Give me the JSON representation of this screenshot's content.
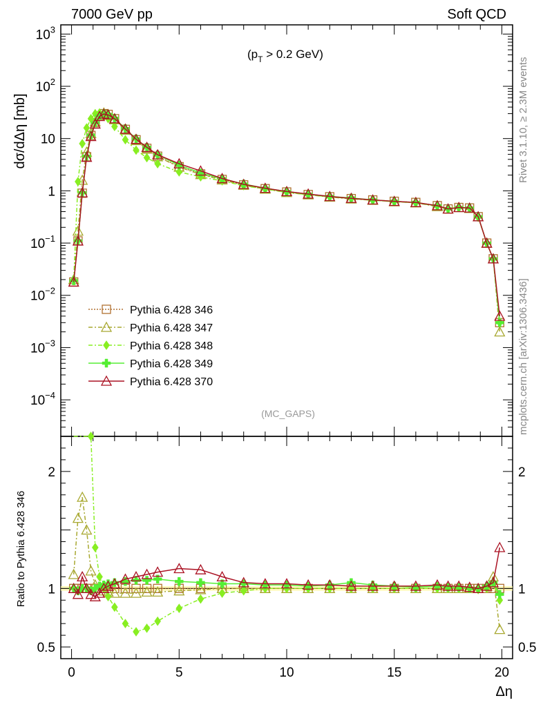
{
  "header": {
    "left": "7000 GeV pp",
    "right": "Soft QCD"
  },
  "side_labels": {
    "right_upper": "Rivet 3.1.10, ≥ 2.3M events",
    "right_lower": "mcplots.cern.ch [arXiv:1306.3436]"
  },
  "chart_data": {
    "type": "line",
    "annotation_cut": "(p_T > 0.2 GeV)",
    "watermark": "(MC_GAPS)",
    "xlabel": "Δη",
    "x_ticks": [
      "0",
      "5",
      "10",
      "15",
      "20"
    ],
    "xlim": [
      -0.5,
      20.5
    ],
    "main_panel": {
      "ylabel": "dσ/dΔη [mb]",
      "yscale": "log",
      "ylim": [
        2e-05,
        1500
      ],
      "y_ticks": [
        "10^-4",
        "10^-3",
        "10^-2",
        "10^-1",
        "1",
        "10",
        "10^2",
        "10^3"
      ]
    },
    "ratio_panel": {
      "ylabel": "Ratio to Pythia 6.428 346",
      "ylim": [
        0.4,
        2.3
      ],
      "y_ticks": [
        "0.5",
        "1",
        "2"
      ]
    },
    "x": [
      0.1,
      0.3,
      0.5,
      0.7,
      0.9,
      1.1,
      1.3,
      1.5,
      1.7,
      2.0,
      2.5,
      3.0,
      3.5,
      4.0,
      5.0,
      6.0,
      7.0,
      8.0,
      9.0,
      10.0,
      11.0,
      12.0,
      13.0,
      14.0,
      15.0,
      16.0,
      17.0,
      17.5,
      18.0,
      18.5,
      18.9,
      19.3,
      19.6,
      19.9
    ],
    "series": [
      {
        "name": "Pythia 6.428 346",
        "color": "#b07030",
        "marker": "square",
        "dash": "2,2",
        "values": [
          0.018,
          0.11,
          0.9,
          4.5,
          11.5,
          20,
          27,
          30,
          29,
          24,
          15,
          9.5,
          6.5,
          4.6,
          2.9,
          2.1,
          1.65,
          1.3,
          1.1,
          0.95,
          0.85,
          0.77,
          0.71,
          0.67,
          0.63,
          0.6,
          0.52,
          0.45,
          0.48,
          0.47,
          0.32,
          0.1,
          0.05,
          0.003
        ],
        "ratio": [
          1.0,
          1.0,
          1.0,
          1.0,
          1.0,
          1.0,
          1.0,
          1.0,
          1.0,
          1.0,
          1.0,
          1.0,
          1.0,
          1.0,
          1.0,
          1.0,
          1.0,
          1.0,
          1.0,
          1.0,
          1.0,
          1.0,
          1.0,
          1.0,
          1.0,
          1.0,
          1.0,
          1.0,
          1.0,
          1.0,
          1.0,
          1.0,
          1.0,
          1.0
        ]
      },
      {
        "name": "Pythia 6.428 347",
        "color": "#a8a830",
        "marker": "triangle",
        "dash": "6,3,2,3",
        "values": [
          0.02,
          0.17,
          1.6,
          5.5,
          12.5,
          21,
          28,
          31,
          29,
          23,
          14.5,
          9.2,
          6.3,
          4.5,
          2.85,
          2.05,
          1.62,
          1.28,
          1.08,
          0.93,
          0.84,
          0.76,
          0.7,
          0.66,
          0.62,
          0.59,
          0.5,
          0.45,
          0.48,
          0.46,
          0.32,
          0.1,
          0.05,
          0.002
        ],
        "ratio": [
          1.12,
          1.6,
          1.78,
          1.5,
          1.15,
          1.03,
          1.0,
          0.98,
          0.97,
          0.96,
          0.96,
          0.96,
          0.97,
          0.97,
          0.98,
          0.99,
          1.0,
          1.0,
          1.0,
          1.0,
          1.0,
          1.0,
          1.0,
          1.0,
          1.0,
          1.0,
          1.0,
          1.0,
          1.0,
          1.0,
          1.0,
          1.02,
          1.1,
          0.65
        ]
      },
      {
        "name": "Pythia 6.428 348",
        "color": "#88ee22",
        "marker": "diamond",
        "dash": "6,3,2,3",
        "values": [
          0.02,
          1.5,
          8.0,
          16,
          24,
          30,
          31,
          27,
          24,
          17,
          9.5,
          6.0,
          4.3,
          3.3,
          2.3,
          1.85,
          1.55,
          1.25,
          1.08,
          0.94,
          0.84,
          0.77,
          0.71,
          0.66,
          0.62,
          0.59,
          0.51,
          0.46,
          0.48,
          0.46,
          0.31,
          0.1,
          0.05,
          0.003
        ],
        "ratio": [
          2.5,
          2.45,
          2.4,
          2.35,
          2.3,
          1.35,
          1.1,
          1.0,
          0.93,
          0.84,
          0.7,
          0.63,
          0.66,
          0.72,
          0.83,
          0.91,
          0.96,
          0.98,
          1.0,
          1.0,
          1.0,
          1.0,
          1.0,
          1.0,
          1.0,
          1.0,
          1.0,
          1.0,
          1.0,
          1.0,
          0.99,
          1.0,
          1.05,
          0.9
        ]
      },
      {
        "name": "Pythia 6.428 349",
        "color": "#55ee33",
        "marker": "cross",
        "dash": "",
        "values": [
          0.019,
          0.11,
          0.92,
          4.6,
          11.6,
          20,
          27,
          30,
          29,
          24.5,
          15.5,
          9.9,
          6.8,
          4.9,
          3.1,
          2.2,
          1.7,
          1.35,
          1.12,
          0.97,
          0.86,
          0.78,
          0.73,
          0.67,
          0.63,
          0.6,
          0.52,
          0.45,
          0.48,
          0.47,
          0.32,
          0.1,
          0.05,
          0.003
        ],
        "ratio": [
          1.0,
          0.98,
          1.0,
          1.0,
          0.98,
          1.0,
          1.02,
          1.03,
          1.04,
          1.05,
          1.06,
          1.07,
          1.07,
          1.08,
          1.06,
          1.05,
          1.04,
          1.04,
          1.03,
          1.03,
          1.02,
          1.03,
          1.05,
          1.03,
          1.02,
          1.01,
          1.02,
          1.01,
          1.01,
          1.0,
          1.0,
          1.02,
          1.05,
          0.95
        ]
      },
      {
        "name": "Pythia 6.428 370",
        "color": "#aa1122",
        "marker": "triangle",
        "dash": "",
        "values": [
          0.018,
          0.11,
          0.92,
          4.4,
          11.0,
          19,
          26.5,
          29.5,
          28.5,
          24,
          15.2,
          9.7,
          6.8,
          4.9,
          3.3,
          2.4,
          1.72,
          1.33,
          1.12,
          0.97,
          0.87,
          0.78,
          0.72,
          0.67,
          0.63,
          0.6,
          0.52,
          0.45,
          0.48,
          0.47,
          0.32,
          0.1,
          0.05,
          0.004
        ],
        "ratio": [
          1.0,
          0.95,
          1.1,
          1.0,
          0.95,
          0.93,
          0.96,
          1.0,
          1.02,
          1.04,
          1.08,
          1.1,
          1.12,
          1.14,
          1.17,
          1.16,
          1.1,
          1.05,
          1.04,
          1.04,
          1.03,
          1.03,
          1.02,
          1.02,
          1.02,
          1.02,
          1.03,
          1.02,
          1.02,
          1.01,
          1.0,
          1.02,
          1.05,
          1.35
        ]
      }
    ]
  }
}
